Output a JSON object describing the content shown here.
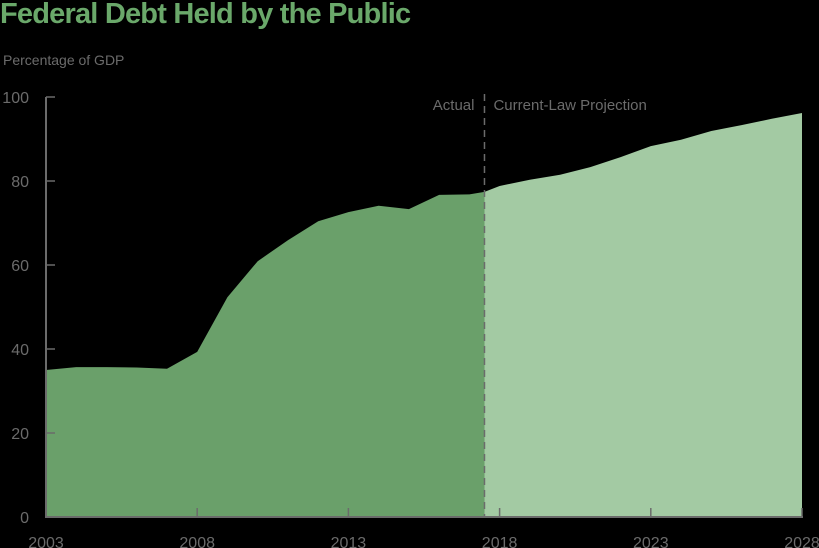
{
  "title": "Federal Debt Held by the Public",
  "y_axis_label": "Percentage of GDP",
  "annotations": {
    "actual": "Actual",
    "projection": "Current-Law Projection"
  },
  "colors": {
    "title": "#6aa86a",
    "actual_fill": "#6aa06a",
    "projection_fill": "#a3caa3",
    "text": "#6b6b6b",
    "background": "#000000"
  },
  "chart_data": {
    "type": "area",
    "title": "Federal Debt Held by the Public",
    "xlabel": "",
    "ylabel": "Percentage of GDP",
    "ylim": [
      0,
      100
    ],
    "xlim": [
      2003,
      2028
    ],
    "yticks": [
      0,
      20,
      40,
      60,
      80,
      100
    ],
    "xticks": [
      2003,
      2008,
      2013,
      2018,
      2023,
      2028
    ],
    "grid": false,
    "divider_year": 2017.5,
    "series": [
      {
        "name": "Actual",
        "x": [
          2003,
          2004,
          2005,
          2006,
          2007,
          2008,
          2009,
          2010,
          2011,
          2012,
          2013,
          2014,
          2015,
          2016,
          2017,
          2017.5
        ],
        "values": [
          35.0,
          35.7,
          35.7,
          35.6,
          35.3,
          39.3,
          52.3,
          60.9,
          65.9,
          70.4,
          72.6,
          74.1,
          73.3,
          76.7,
          76.8,
          77.4
        ]
      },
      {
        "name": "Current-Law Projection",
        "x": [
          2017.5,
          2018,
          2019,
          2020,
          2021,
          2022,
          2023,
          2024,
          2025,
          2026,
          2027,
          2028
        ],
        "values": [
          77.4,
          78.8,
          80.3,
          81.5,
          83.3,
          85.7,
          88.3,
          89.8,
          91.9,
          93.3,
          94.8,
          96.2
        ]
      }
    ]
  }
}
